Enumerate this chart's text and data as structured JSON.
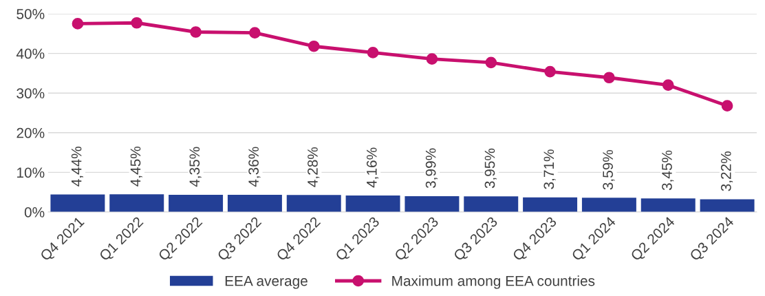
{
  "chart_data": {
    "type": "bar",
    "categories": [
      "Q4 2021",
      "Q1 2022",
      "Q2 2022",
      "Q3 2022",
      "Q4 2022",
      "Q1 2023",
      "Q2 2023",
      "Q3 2023",
      "Q4 2023",
      "Q1 2024",
      "Q2 2024",
      "Q3 2024"
    ],
    "series": [
      {
        "name": "EEA average",
        "color": "#233f96",
        "values": [
          4.44,
          4.45,
          4.35,
          4.36,
          4.28,
          4.16,
          3.99,
          3.95,
          3.71,
          3.59,
          3.45,
          3.22
        ],
        "value_labels": [
          "4,44%",
          "4,45%",
          "4,35%",
          "4,36%",
          "4,28%",
          "4,16%",
          "3,99%",
          "3,95%",
          "3,71%",
          "3,59%",
          "3,45%",
          "3,22%"
        ]
      },
      {
        "name": "Maximum among EEA countries",
        "type": "line",
        "color": "#c8106e",
        "marker": "circle",
        "values": [
          47.5,
          47.7,
          45.4,
          45.2,
          41.8,
          40.2,
          38.6,
          37.7,
          35.4,
          33.9,
          32.0,
          26.8
        ]
      }
    ],
    "ylim": [
      0,
      50
    ],
    "yticks": [
      {
        "value": 0,
        "label": "0%"
      },
      {
        "value": 10,
        "label": "10%"
      },
      {
        "value": 20,
        "label": "20%"
      },
      {
        "value": 30,
        "label": "30%"
      },
      {
        "value": 40,
        "label": "40%"
      },
      {
        "value": 50,
        "label": "50%"
      }
    ],
    "grid": "y",
    "legend": "bottom"
  }
}
